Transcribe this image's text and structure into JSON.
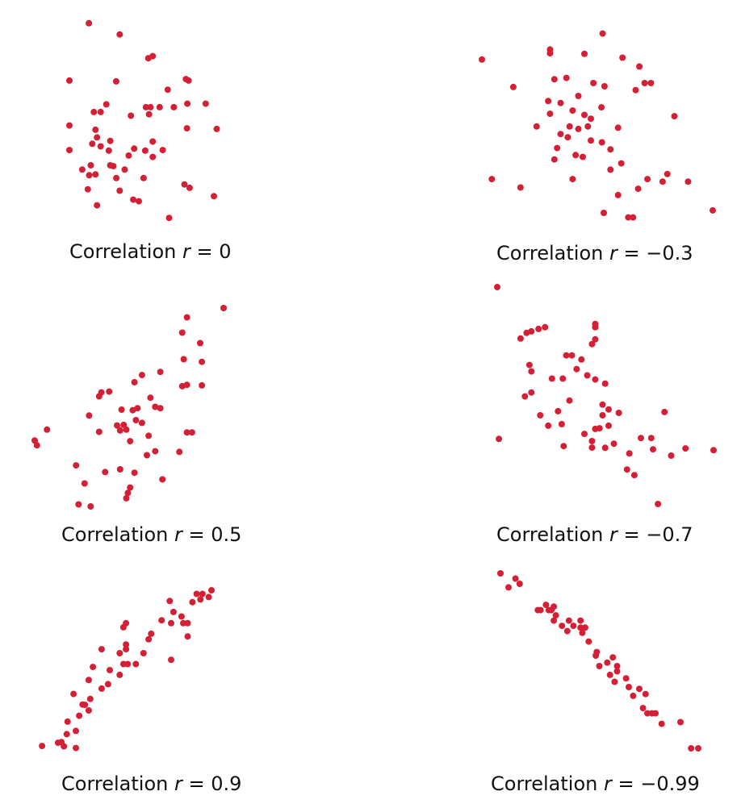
{
  "colors": {
    "point": "#d41f35",
    "text": "#111111"
  },
  "chart_data": [
    {
      "type": "scatter",
      "title": "Correlation r = 0",
      "caption": {
        "label": "Correlation",
        "var": "r",
        "eq": "= 0"
      },
      "xlim": [
        0,
        100
      ],
      "ylim": [
        0,
        100
      ],
      "points": [
        [
          11.8,
          96.5
        ],
        [
          29.1,
          91.0
        ],
        [
          45.1,
          79.3
        ],
        [
          47.6,
          80.3
        ],
        [
          0.9,
          68.3
        ],
        [
          27.1,
          67.9
        ],
        [
          66.2,
          69.0
        ],
        [
          67.7,
          68.3
        ],
        [
          56.0,
          63.8
        ],
        [
          21.6,
          56.6
        ],
        [
          67.0,
          56.9
        ],
        [
          77.3,
          56.9
        ],
        [
          43.8,
          55.2
        ],
        [
          46.4,
          55.2
        ],
        [
          51.5,
          55.2
        ],
        [
          59.4,
          55.2
        ],
        [
          14.6,
          52.8
        ],
        [
          18.4,
          52.8
        ],
        [
          45.5,
          51.7
        ],
        [
          35.4,
          51.0
        ],
        [
          0.9,
          46.2
        ],
        [
          66.8,
          44.8
        ],
        [
          83.5,
          44.5
        ],
        [
          15.5,
          44.1
        ],
        [
          16.4,
          40.3
        ],
        [
          23.8,
          38.6
        ],
        [
          13.7,
          37.2
        ],
        [
          18.4,
          35.9
        ],
        [
          47.6,
          38.3
        ],
        [
          0.9,
          34.1
        ],
        [
          23.0,
          33.8
        ],
        [
          37.2,
          34.8
        ],
        [
          43.4,
          33.8
        ],
        [
          53.2,
          34.1
        ],
        [
          34.1,
          31.4
        ],
        [
          47.6,
          30.7
        ],
        [
          12.9,
          26.6
        ],
        [
          23.8,
          26.6
        ],
        [
          25.5,
          26.2
        ],
        [
          8.1,
          24.5
        ],
        [
          31.9,
          24.5
        ],
        [
          15.5,
          22.1
        ],
        [
          12.0,
          21.7
        ],
        [
          27.2,
          20.3
        ],
        [
          42.5,
          20.3
        ],
        [
          65.4,
          17.2
        ],
        [
          68.3,
          15.5
        ],
        [
          11.2,
          14.8
        ],
        [
          29.1,
          14.1
        ],
        [
          36.7,
          9.7
        ],
        [
          81.9,
          11.4
        ],
        [
          39.8,
          8.9
        ],
        [
          16.4,
          6.9
        ],
        [
          56.8,
          0.7
        ]
      ]
    },
    {
      "type": "scatter",
      "title": "Correlation r = −0.3",
      "caption": {
        "label": "Correlation",
        "var": "r",
        "eq": "= −0.3"
      },
      "xlim": [
        0,
        100
      ],
      "ylim": [
        0,
        100
      ],
      "points": [
        [
          52.3,
          99.3
        ],
        [
          29.5,
          90.9
        ],
        [
          29.5,
          88.9
        ],
        [
          44.4,
          88.6
        ],
        [
          0.0,
          85.6
        ],
        [
          60.9,
          86.6
        ],
        [
          68.2,
          81.9
        ],
        [
          31.4,
          75.2
        ],
        [
          36.6,
          75.9
        ],
        [
          48.3,
          73.2
        ],
        [
          53.1,
          71.5
        ],
        [
          70.5,
          73.2
        ],
        [
          73.2,
          73.2
        ],
        [
          13.6,
          71.1
        ],
        [
          66.6,
          69.5
        ],
        [
          41.8,
          66.4
        ],
        [
          28.7,
          63.7
        ],
        [
          34.1,
          62.7
        ],
        [
          39.3,
          58.7
        ],
        [
          51.8,
          60.4
        ],
        [
          29.5,
          57.0
        ],
        [
          44.4,
          56.4
        ],
        [
          47.2,
          54.4
        ],
        [
          83.4,
          55.7
        ],
        [
          23.7,
          50.3
        ],
        [
          38.0,
          50.3
        ],
        [
          45.9,
          50.3
        ],
        [
          34.1,
          46.3
        ],
        [
          41.8,
          49.0
        ],
        [
          59.0,
          49.6
        ],
        [
          37.2,
          44.6
        ],
        [
          47.2,
          42.9
        ],
        [
          52.0,
          41.9
        ],
        [
          32.6,
          38.9
        ],
        [
          40.6,
          35.2
        ],
        [
          55.7,
          38.2
        ],
        [
          31.4,
          32.9
        ],
        [
          43.7,
          34.2
        ],
        [
          60.4,
          30.8
        ],
        [
          55.7,
          27.5
        ],
        [
          80.3,
          25.2
        ],
        [
          4.3,
          22.5
        ],
        [
          39.3,
          22.5
        ],
        [
          71.7,
          22.5
        ],
        [
          78.3,
          21.2
        ],
        [
          89.3,
          21.2
        ],
        [
          16.7,
          18.1
        ],
        [
          67.7,
          17.4
        ],
        [
          59.0,
          14.1
        ],
        [
          52.8,
          4.7
        ],
        [
          63.4,
          2.3
        ],
        [
          65.5,
          2.3
        ],
        [
          100.0,
          6.0
        ]
      ]
    },
    {
      "type": "scatter",
      "title": "Correlation r = 0.5",
      "caption": {
        "label": "Correlation",
        "var": "r",
        "eq": "= 0.5"
      },
      "xlim": [
        0,
        100
      ],
      "ylim": [
        0,
        100
      ],
      "points": [
        [
          100.0,
          100.0
        ],
        [
          80.6,
          95.3
        ],
        [
          78.1,
          87.6
        ],
        [
          87.6,
          82.3
        ],
        [
          78.9,
          74.2
        ],
        [
          88.5,
          72.9
        ],
        [
          56.8,
          66.2
        ],
        [
          66.5,
          67.8
        ],
        [
          52.8,
          62.6
        ],
        [
          80.6,
          61.3
        ],
        [
          35.3,
          57.5
        ],
        [
          39.4,
          57.9
        ],
        [
          88.5,
          61.0
        ],
        [
          34.1,
          55.5
        ],
        [
          78.1,
          60.6
        ],
        [
          61.3,
          54.8
        ],
        [
          54.4,
          49.5
        ],
        [
          63.8,
          50.2
        ],
        [
          66.5,
          49.5
        ],
        [
          46.0,
          48.8
        ],
        [
          51.9,
          48.5
        ],
        [
          28.8,
          45.8
        ],
        [
          6.5,
          38.7
        ],
        [
          43.6,
          40.8
        ],
        [
          53.6,
          43.5
        ],
        [
          47.1,
          41.1
        ],
        [
          56.8,
          42.1
        ],
        [
          45.2,
          38.3
        ],
        [
          48.5,
          38.7
        ],
        [
          34.1,
          37.6
        ],
        [
          80.6,
          37.3
        ],
        [
          83.3,
          37.3
        ],
        [
          60.3,
          35.6
        ],
        [
          0.0,
          33.2
        ],
        [
          50.5,
          32.9
        ],
        [
          1.2,
          30.8
        ],
        [
          63.8,
          27.8
        ],
        [
          76.6,
          27.5
        ],
        [
          59.4,
          25.8
        ],
        [
          21.9,
          20.7
        ],
        [
          45.2,
          18.7
        ],
        [
          37.3,
          17.3
        ],
        [
          52.8,
          17.0
        ],
        [
          67.6,
          13.6
        ],
        [
          26.4,
          11.6
        ],
        [
          50.5,
          9.5
        ],
        [
          49.3,
          6.8
        ],
        [
          48.5,
          4.1
        ],
        [
          23.2,
          1.0
        ],
        [
          29.6,
          0.0
        ]
      ]
    },
    {
      "type": "scatter",
      "title": "Correlation r = −0.7",
      "caption": {
        "label": "Correlation",
        "var": "r",
        "eq": "= −0.7"
      },
      "xlim": [
        0,
        100
      ],
      "ylim": [
        0,
        100
      ],
      "points": [
        [
          0.0,
          100.0
        ],
        [
          45.3,
          83.0
        ],
        [
          45.3,
          81.5
        ],
        [
          22.1,
          81.5
        ],
        [
          19.1,
          80.7
        ],
        [
          15.8,
          79.6
        ],
        [
          13.6,
          78.9
        ],
        [
          10.8,
          76.3
        ],
        [
          45.3,
          75.9
        ],
        [
          43.8,
          73.7
        ],
        [
          31.9,
          68.5
        ],
        [
          34.5,
          68.5
        ],
        [
          38.9,
          66.6
        ],
        [
          14.9,
          64.1
        ],
        [
          15.8,
          61.1
        ],
        [
          36.7,
          62.2
        ],
        [
          41.6,
          59.3
        ],
        [
          25.3,
          57.8
        ],
        [
          30.3,
          57.8
        ],
        [
          45.3,
          57.4
        ],
        [
          49.9,
          55.5
        ],
        [
          15.8,
          51.4
        ],
        [
          12.8,
          49.6
        ],
        [
          33.4,
          47.7
        ],
        [
          48.7,
          45.8
        ],
        [
          51.5,
          43.6
        ],
        [
          19.9,
          40.9
        ],
        [
          28.1,
          42.8
        ],
        [
          56.2,
          42.0
        ],
        [
          77.3,
          42.4
        ],
        [
          48.7,
          40.9
        ],
        [
          29.8,
          36.8
        ],
        [
          23.6,
          36.1
        ],
        [
          51.5,
          36.1
        ],
        [
          45.3,
          34.6
        ],
        [
          47.3,
          34.9
        ],
        [
          40.3,
          32.3
        ],
        [
          43.8,
          29.0
        ],
        [
          66.4,
          30.4
        ],
        [
          71.2,
          30.4
        ],
        [
          30.7,
          26.7
        ],
        [
          43.8,
          26.0
        ],
        [
          53.9,
          27.8
        ],
        [
          49.9,
          25.9
        ],
        [
          61.1,
          23.3
        ],
        [
          72.0,
          25.2
        ],
        [
          0.8,
          30.0
        ],
        [
          87.0,
          25.6
        ],
        [
          100.0,
          24.8
        ],
        [
          80.4,
          22.3
        ],
        [
          60.0,
          15.9
        ],
        [
          63.4,
          13.3
        ],
        [
          74.3,
          0.0
        ]
      ]
    },
    {
      "type": "scatter",
      "title": "Correlation r = 0.9",
      "caption": {
        "label": "Correlation",
        "var": "r",
        "eq": "= 0.9"
      },
      "xlim": [
        0,
        100
      ],
      "ylim": [
        0,
        100
      ],
      "points": [
        [
          100.0,
          100.0
        ],
        [
          91.3,
          97.7
        ],
        [
          94.7,
          97.7
        ],
        [
          98.4,
          95.7
        ],
        [
          75.5,
          93.2
        ],
        [
          93.5,
          94.2
        ],
        [
          88.8,
          92.5
        ],
        [
          77.7,
          86.3
        ],
        [
          82.4,
          83.4
        ],
        [
          70.7,
          81.0
        ],
        [
          49.8,
          79.2
        ],
        [
          83.4,
          79.2
        ],
        [
          86.0,
          79.2
        ],
        [
          76.3,
          79.2
        ],
        [
          48.3,
          76.6
        ],
        [
          64.6,
          72.5
        ],
        [
          63.1,
          69.0
        ],
        [
          86.0,
          70.8
        ],
        [
          49.8,
          65.7
        ],
        [
          49.8,
          62.7
        ],
        [
          35.5,
          62.7
        ],
        [
          60.1,
          60.2
        ],
        [
          46.1,
          60.2
        ],
        [
          76.3,
          56.0
        ],
        [
          48.3,
          53.3
        ],
        [
          50.8,
          53.3
        ],
        [
          55.6,
          53.3
        ],
        [
          40.3,
          49.5
        ],
        [
          30.4,
          51.5
        ],
        [
          46.1,
          46.5
        ],
        [
          27.9,
          43.2
        ],
        [
          39.3,
          40.6
        ],
        [
          35.5,
          37.8
        ],
        [
          19.0,
          34.4
        ],
        [
          28.8,
          31.3
        ],
        [
          24.3,
          27.7
        ],
        [
          25.7,
          27.5
        ],
        [
          27.9,
          24.0
        ],
        [
          22.3,
          20.6
        ],
        [
          15.5,
          16.9
        ],
        [
          20.4,
          11.0
        ],
        [
          15.0,
          9.0
        ],
        [
          11.9,
          4.0
        ],
        [
          9.9,
          3.5
        ],
        [
          13.3,
          1.3
        ],
        [
          20.4,
          0.2
        ],
        [
          0.5,
          1.5
        ]
      ]
    },
    {
      "type": "scatter",
      "title": "Correlation r = −0.99",
      "caption": {
        "label": "Correlation",
        "var": "r",
        "eq": "= −0.99"
      },
      "xlim": [
        0,
        100
      ],
      "ylim": [
        0,
        100
      ],
      "points": [
        [
          0.0,
          100.0
        ],
        [
          7.6,
          97.0
        ],
        [
          9.7,
          94.0
        ],
        [
          4.1,
          92.0
        ],
        [
          23.0,
          82.0
        ],
        [
          27.0,
          81.0
        ],
        [
          18.9,
          79.0
        ],
        [
          20.3,
          79.0
        ],
        [
          24.4,
          79.0
        ],
        [
          25.7,
          79.0
        ],
        [
          28.0,
          76.0
        ],
        [
          27.0,
          73.0
        ],
        [
          34.6,
          73.0
        ],
        [
          40.5,
          73.0
        ],
        [
          31.1,
          70.0
        ],
        [
          36.9,
          70.0
        ],
        [
          40.5,
          69.0
        ],
        [
          42.8,
          69.0
        ],
        [
          33.8,
          67.0
        ],
        [
          41.4,
          66.0
        ],
        [
          44.6,
          61.0
        ],
        [
          48.7,
          55.0
        ],
        [
          48.2,
          53.0
        ],
        [
          56.8,
          52.0
        ],
        [
          54.0,
          49.0
        ],
        [
          50.0,
          47.0
        ],
        [
          59.0,
          47.0
        ],
        [
          59.0,
          44.0
        ],
        [
          55.4,
          42.0
        ],
        [
          63.5,
          40.0
        ],
        [
          57.7,
          38.0
        ],
        [
          64.9,
          35.0
        ],
        [
          70.2,
          34.0
        ],
        [
          73.4,
          31.0
        ],
        [
          67.1,
          30.0
        ],
        [
          72.1,
          23.0
        ],
        [
          74.3,
          20.0
        ],
        [
          76.6,
          20.0
        ],
        [
          78.4,
          20.0
        ],
        [
          91.0,
          15.0
        ],
        [
          81.5,
          14.0
        ],
        [
          96.4,
          0.0
        ],
        [
          100.0,
          0.0
        ]
      ]
    }
  ]
}
